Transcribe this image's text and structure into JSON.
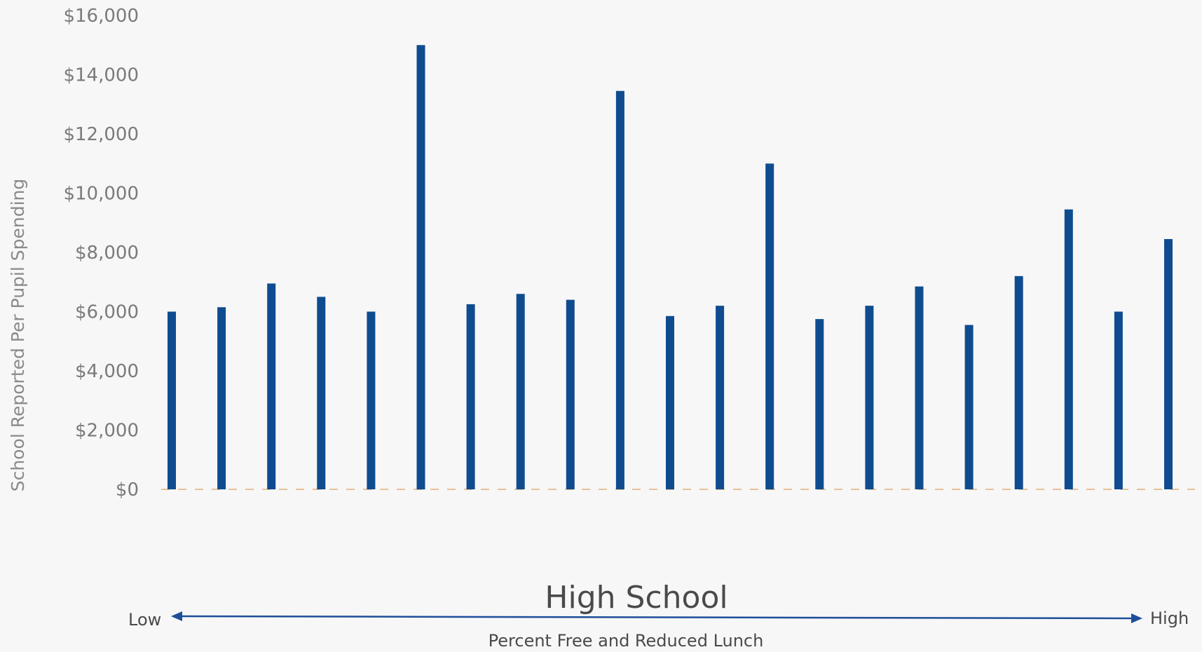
{
  "chart_data": {
    "type": "bar",
    "title": "High School",
    "ylabel": "School Reported Per Pupil Spending",
    "xlabel": "Percent Free and Reduced Lunch",
    "x_low_label": "Low",
    "x_high_label": "High",
    "ylim": [
      0,
      16000
    ],
    "yticks": [
      "$0",
      "$2,000",
      "$4,000",
      "$6,000",
      "$8,000",
      "$10,000",
      "$12,000",
      "$14,000",
      "$16,000"
    ],
    "ytick_values": [
      0,
      2000,
      4000,
      6000,
      8000,
      10000,
      12000,
      14000,
      16000
    ],
    "values": [
      6000,
      6150,
      6950,
      6500,
      6000,
      15000,
      6250,
      6600,
      6400,
      13450,
      5850,
      6200,
      11000,
      5750,
      6200,
      6850,
      5550,
      7200,
      9450,
      6000,
      8450
    ],
    "grid": false,
    "bar_color": "#0f4c8f",
    "baseline_color": "#e0b07a",
    "arrow_color": "#1e4e9a"
  }
}
